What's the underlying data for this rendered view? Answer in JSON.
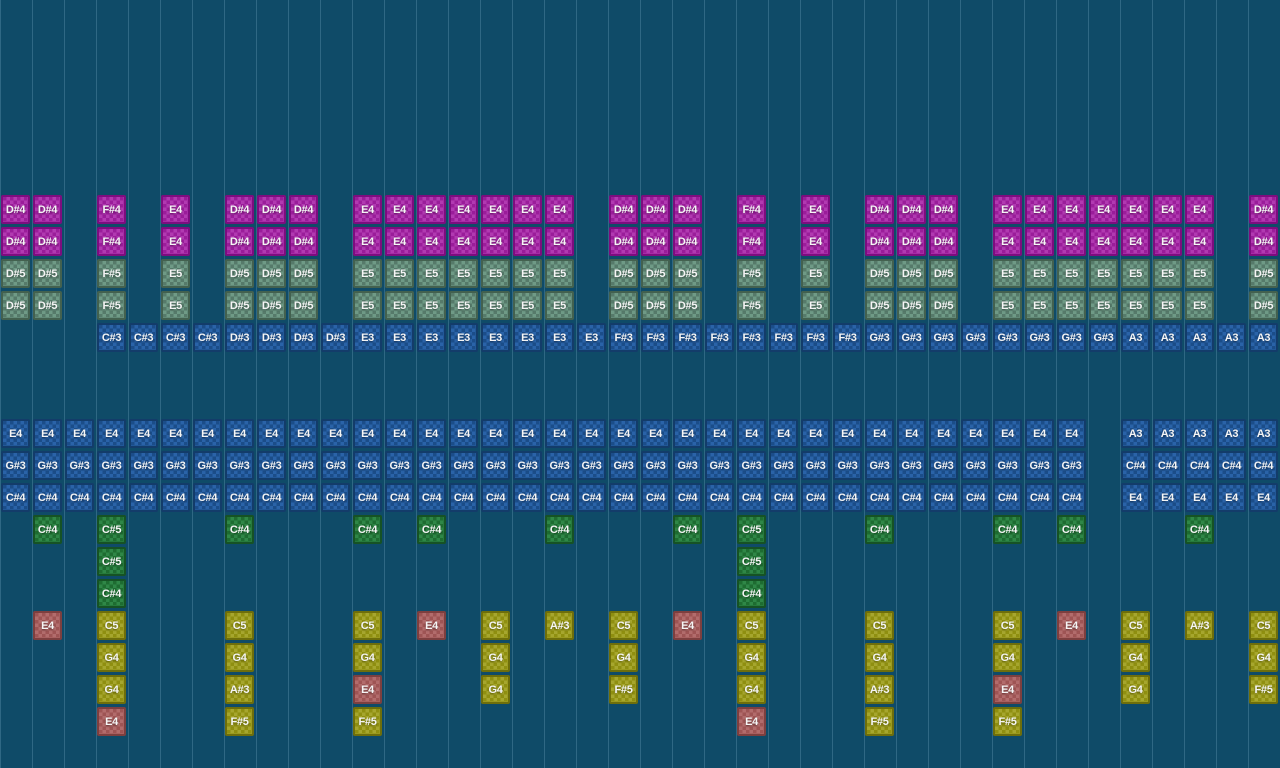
{
  "app": {
    "name": "music-sequencer-grid",
    "background_color": "#0f4b68",
    "gridline_color": "rgba(160,205,230,0.22)"
  },
  "kinds": {
    "m": {
      "name": "magenta-note",
      "base": "#9a1d9a",
      "light": "#b13ab1",
      "border": "#7d0d7f"
    },
    "t": {
      "name": "sage-note",
      "base": "#567a6a",
      "light": "#6f9a86",
      "border": "#43614f"
    },
    "b": {
      "name": "blue-note",
      "base": "#1b4d89",
      "light": "#2a63a8",
      "border": "#133c6a"
    },
    "g": {
      "name": "green-note",
      "base": "#1e6c31",
      "light": "#2f8747",
      "border": "#165225"
    },
    "y": {
      "name": "olive-note",
      "base": "#8f8f10",
      "light": "#a6a62e",
      "border": "#6e6e0b"
    },
    "r": {
      "name": "red-note",
      "base": "#9e5454",
      "light": "#b26c6c",
      "border": "#7d3f3f"
    }
  },
  "grid": {
    "columns": 40,
    "rows": 15,
    "note_runs": [
      [
        0,
        0,
        2,
        "D#4",
        "m"
      ],
      [
        0,
        3,
        1,
        "F#4",
        "m"
      ],
      [
        0,
        5,
        1,
        "E4",
        "m"
      ],
      [
        0,
        7,
        3,
        "D#4",
        "m"
      ],
      [
        0,
        11,
        7,
        "E4",
        "m"
      ],
      [
        0,
        19,
        3,
        "D#4",
        "m"
      ],
      [
        0,
        23,
        1,
        "F#4",
        "m"
      ],
      [
        0,
        25,
        1,
        "E4",
        "m"
      ],
      [
        0,
        27,
        3,
        "D#4",
        "m"
      ],
      [
        0,
        31,
        7,
        "E4",
        "m"
      ],
      [
        0,
        39,
        1,
        "D#4",
        "m"
      ],
      [
        1,
        0,
        2,
        "D#4",
        "m"
      ],
      [
        1,
        3,
        1,
        "F#4",
        "m"
      ],
      [
        1,
        5,
        1,
        "E4",
        "m"
      ],
      [
        1,
        7,
        3,
        "D#4",
        "m"
      ],
      [
        1,
        11,
        7,
        "E4",
        "m"
      ],
      [
        1,
        19,
        3,
        "D#4",
        "m"
      ],
      [
        1,
        23,
        1,
        "F#4",
        "m"
      ],
      [
        1,
        25,
        1,
        "E4",
        "m"
      ],
      [
        1,
        27,
        3,
        "D#4",
        "m"
      ],
      [
        1,
        31,
        7,
        "E4",
        "m"
      ],
      [
        1,
        39,
        1,
        "D#4",
        "m"
      ],
      [
        2,
        0,
        2,
        "D#5",
        "t"
      ],
      [
        2,
        3,
        1,
        "F#5",
        "t"
      ],
      [
        2,
        5,
        1,
        "E5",
        "t"
      ],
      [
        2,
        7,
        3,
        "D#5",
        "t"
      ],
      [
        2,
        11,
        7,
        "E5",
        "t"
      ],
      [
        2,
        19,
        3,
        "D#5",
        "t"
      ],
      [
        2,
        23,
        1,
        "F#5",
        "t"
      ],
      [
        2,
        25,
        1,
        "E5",
        "t"
      ],
      [
        2,
        27,
        3,
        "D#5",
        "t"
      ],
      [
        2,
        31,
        7,
        "E5",
        "t"
      ],
      [
        2,
        39,
        1,
        "D#5",
        "t"
      ],
      [
        3,
        0,
        2,
        "D#5",
        "t"
      ],
      [
        3,
        3,
        1,
        "F#5",
        "t"
      ],
      [
        3,
        5,
        1,
        "E5",
        "t"
      ],
      [
        3,
        7,
        3,
        "D#5",
        "t"
      ],
      [
        3,
        11,
        7,
        "E5",
        "t"
      ],
      [
        3,
        19,
        3,
        "D#5",
        "t"
      ],
      [
        3,
        23,
        1,
        "F#5",
        "t"
      ],
      [
        3,
        25,
        1,
        "E5",
        "t"
      ],
      [
        3,
        27,
        3,
        "D#5",
        "t"
      ],
      [
        3,
        31,
        7,
        "E5",
        "t"
      ],
      [
        3,
        39,
        1,
        "D#5",
        "t"
      ],
      [
        4,
        3,
        4,
        "C#3",
        "b"
      ],
      [
        4,
        7,
        4,
        "D#3",
        "b"
      ],
      [
        4,
        11,
        8,
        "E3",
        "b"
      ],
      [
        4,
        19,
        8,
        "F#3",
        "b"
      ],
      [
        4,
        27,
        8,
        "G#3",
        "b"
      ],
      [
        4,
        35,
        5,
        "A3",
        "b"
      ],
      [
        5,
        0,
        34,
        "E4",
        "b"
      ],
      [
        5,
        35,
        5,
        "A3",
        "b"
      ],
      [
        6,
        0,
        34,
        "G#3",
        "b"
      ],
      [
        6,
        35,
        5,
        "C#4",
        "b"
      ],
      [
        7,
        0,
        34,
        "C#4",
        "b"
      ],
      [
        7,
        35,
        5,
        "E4",
        "b"
      ],
      [
        8,
        1,
        1,
        "C#4",
        "g"
      ],
      [
        8,
        3,
        1,
        "C#5",
        "g"
      ],
      [
        8,
        7,
        1,
        "C#4",
        "g"
      ],
      [
        8,
        11,
        1,
        "C#4",
        "g"
      ],
      [
        8,
        13,
        1,
        "C#4",
        "g"
      ],
      [
        8,
        17,
        1,
        "C#4",
        "g"
      ],
      [
        8,
        21,
        1,
        "C#4",
        "g"
      ],
      [
        8,
        23,
        1,
        "C#5",
        "g"
      ],
      [
        8,
        27,
        1,
        "C#4",
        "g"
      ],
      [
        8,
        31,
        1,
        "C#4",
        "g"
      ],
      [
        8,
        33,
        1,
        "C#4",
        "g"
      ],
      [
        8,
        37,
        1,
        "C#4",
        "g"
      ],
      [
        9,
        3,
        1,
        "C#5",
        "g"
      ],
      [
        9,
        23,
        1,
        "C#5",
        "g"
      ],
      [
        10,
        3,
        1,
        "C#4",
        "g"
      ],
      [
        10,
        23,
        1,
        "C#4",
        "g"
      ],
      [
        11,
        1,
        1,
        "E4",
        "r"
      ],
      [
        11,
        3,
        1,
        "C5",
        "y"
      ],
      [
        11,
        7,
        1,
        "C5",
        "y"
      ],
      [
        11,
        11,
        1,
        "C5",
        "y"
      ],
      [
        11,
        13,
        1,
        "E4",
        "r"
      ],
      [
        11,
        15,
        1,
        "C5",
        "y"
      ],
      [
        11,
        17,
        1,
        "A#3",
        "y"
      ],
      [
        11,
        19,
        1,
        "C5",
        "y"
      ],
      [
        11,
        21,
        1,
        "E4",
        "r"
      ],
      [
        11,
        23,
        1,
        "C5",
        "y"
      ],
      [
        11,
        27,
        1,
        "C5",
        "y"
      ],
      [
        11,
        31,
        1,
        "C5",
        "y"
      ],
      [
        11,
        33,
        1,
        "E4",
        "r"
      ],
      [
        11,
        35,
        1,
        "C5",
        "y"
      ],
      [
        11,
        37,
        1,
        "A#3",
        "y"
      ],
      [
        11,
        39,
        1,
        "C5",
        "y"
      ],
      [
        12,
        3,
        1,
        "G4",
        "y"
      ],
      [
        12,
        7,
        1,
        "G4",
        "y"
      ],
      [
        12,
        11,
        1,
        "G4",
        "y"
      ],
      [
        12,
        15,
        1,
        "G4",
        "y"
      ],
      [
        12,
        19,
        1,
        "G4",
        "y"
      ],
      [
        12,
        23,
        1,
        "G4",
        "y"
      ],
      [
        12,
        27,
        1,
        "G4",
        "y"
      ],
      [
        12,
        31,
        1,
        "G4",
        "y"
      ],
      [
        12,
        35,
        1,
        "G4",
        "y"
      ],
      [
        12,
        39,
        1,
        "G4",
        "y"
      ],
      [
        13,
        3,
        1,
        "G4",
        "y"
      ],
      [
        13,
        7,
        1,
        "A#3",
        "y"
      ],
      [
        13,
        11,
        1,
        "E4",
        "r"
      ],
      [
        13,
        15,
        1,
        "G4",
        "y"
      ],
      [
        13,
        19,
        1,
        "F#5",
        "y"
      ],
      [
        13,
        23,
        1,
        "G4",
        "y"
      ],
      [
        13,
        27,
        1,
        "A#3",
        "y"
      ],
      [
        13,
        31,
        1,
        "E4",
        "r"
      ],
      [
        13,
        35,
        1,
        "G4",
        "y"
      ],
      [
        13,
        39,
        1,
        "F#5",
        "y"
      ],
      [
        14,
        3,
        1,
        "E4",
        "r"
      ],
      [
        14,
        7,
        1,
        "F#5",
        "y"
      ],
      [
        14,
        11,
        1,
        "F#5",
        "y"
      ],
      [
        14,
        23,
        1,
        "E4",
        "r"
      ],
      [
        14,
        27,
        1,
        "F#5",
        "y"
      ],
      [
        14,
        31,
        1,
        "F#5",
        "y"
      ]
    ]
  }
}
